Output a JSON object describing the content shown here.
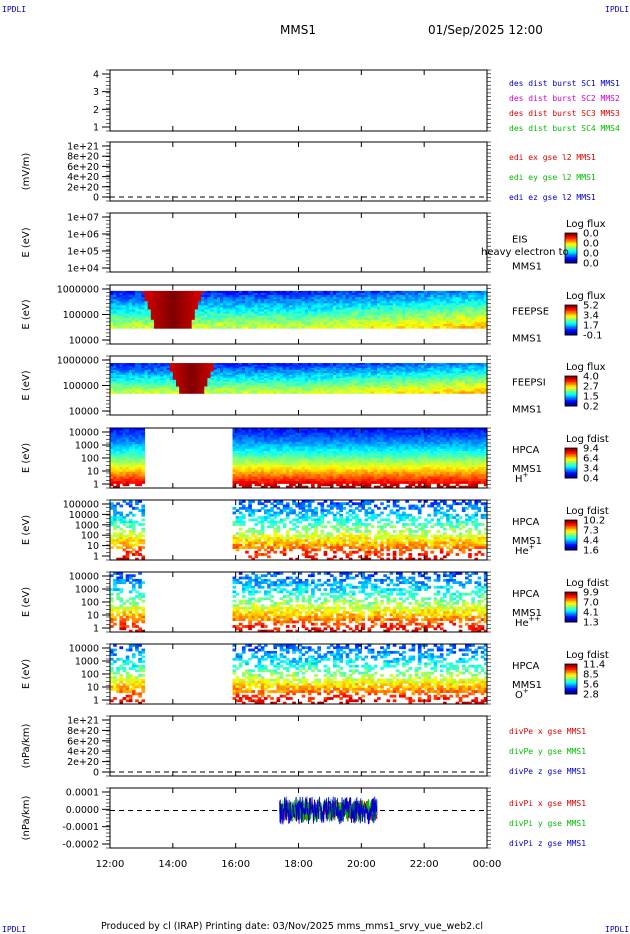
{
  "corner_label": "IPDLI",
  "header": {
    "mission": "MMS1",
    "datetime": "01/Sep/2025 12:00"
  },
  "footer": "Produced by cl (IRAP)   Printing date: 03/Nov/2025   mms_mms1_srvy_vue_web2.cl",
  "colors": {
    "c_blue": "#0000cc",
    "c_magenta": "#cc00cc",
    "c_red": "#dd0000",
    "c_green": "#00bb00",
    "axis": "#000000"
  },
  "chart_data": {
    "type": "heatmap",
    "time_axis": {
      "range_hours": [
        12,
        24
      ],
      "ticks": [
        12,
        14,
        16,
        18,
        20,
        22,
        24
      ],
      "tick_labels": [
        "12:00",
        "14:00",
        "16:00",
        "18:00",
        "20:00",
        "22:00",
        "00:00"
      ]
    },
    "panels": [
      {
        "id": "burst",
        "kind": "line",
        "ylabel": "",
        "yticks": [
          "4",
          "3",
          "2",
          "1"
        ],
        "legend": [
          {
            "text": "des dist burst SC1 MMS1",
            "color": "c_blue"
          },
          {
            "text": "des dist burst SC2 MMS2",
            "color": "c_magenta"
          },
          {
            "text": "des dist burst SC3 MMS3",
            "color": "c_red"
          },
          {
            "text": "des dist burst SC4 MMS4",
            "color": "c_green"
          }
        ]
      },
      {
        "id": "edi",
        "kind": "line",
        "ylabel": "(mV/m)",
        "yticks": [
          "1e+21",
          "8e+20",
          "6e+20",
          "4e+20",
          "2e+20",
          "0"
        ],
        "dashed_zero": true,
        "legend": [
          {
            "text": "edi ex gse l2 MMS1",
            "color": "c_red"
          },
          {
            "text": "edi ey gse l2 MMS1",
            "color": "c_green"
          },
          {
            "text": "edi ez gse l2 MMS1",
            "color": "c_blue"
          }
        ]
      },
      {
        "id": "eis",
        "kind": "spec",
        "ylabel": "E (eV)",
        "yticks": [
          "1e+07",
          "1e+06",
          "1e+05",
          "1e+04"
        ],
        "instrument": [
          "EIS",
          "MMS1"
        ],
        "overlay_text": "heavy electron to",
        "colorbar": {
          "title": "Log flux",
          "ticks": [
            "0.0",
            "0.0",
            "0.0",
            "0.0"
          ]
        }
      },
      {
        "id": "feepse",
        "kind": "spec",
        "ylabel": "E (eV)",
        "yticks": [
          "1000000",
          "100000",
          "10000"
        ],
        "instrument": [
          "FEEPSE",
          "MMS1"
        ],
        "colorbar": {
          "title": "Log flux",
          "ticks": [
            "5.2",
            "3.4",
            "1.7",
            "-0.1"
          ]
        }
      },
      {
        "id": "feepsi",
        "kind": "spec",
        "ylabel": "E (eV)",
        "yticks": [
          "1000000",
          "100000",
          "10000"
        ],
        "instrument": [
          "FEEPSI",
          "MMS1"
        ],
        "colorbar": {
          "title": "Log flux",
          "ticks": [
            "4.0",
            "2.7",
            "1.5",
            "0.2"
          ]
        }
      },
      {
        "id": "hpca_h",
        "kind": "spec",
        "ylabel": "E (eV)",
        "yticks": [
          "10000",
          "1000",
          "100",
          "10",
          "1"
        ],
        "instrument": [
          "HPCA",
          "MMS1"
        ],
        "species": {
          "base": "H",
          "sup": "+"
        },
        "colorbar": {
          "title": "Log fdist",
          "ticks": [
            "9.4",
            "6.4",
            "3.4",
            "0.4"
          ]
        }
      },
      {
        "id": "hpca_he",
        "kind": "spec",
        "ylabel": "E (eV)",
        "yticks": [
          "100000",
          "10000",
          "1000",
          "100",
          "10",
          "1"
        ],
        "instrument": [
          "HPCA",
          "MMS1"
        ],
        "species": {
          "base": "He",
          "sup": "+"
        },
        "colorbar": {
          "title": "Log fdist",
          "ticks": [
            "10.2",
            "7.3",
            "4.4",
            "1.6"
          ]
        }
      },
      {
        "id": "hpca_hepp",
        "kind": "spec",
        "ylabel": "E (eV)",
        "yticks": [
          "10000",
          "1000",
          "100",
          "10",
          "1"
        ],
        "instrument": [
          "HPCA",
          "MMS1"
        ],
        "species": {
          "base": "He",
          "sup": "++"
        },
        "colorbar": {
          "title": "Log fdist",
          "ticks": [
            "9.9",
            "7.0",
            "4.1",
            "1.3"
          ]
        }
      },
      {
        "id": "hpca_o",
        "kind": "spec",
        "ylabel": "E (eV)",
        "yticks": [
          "10000",
          "1000",
          "100",
          "10",
          "1"
        ],
        "instrument": [
          "HPCA",
          "MMS1"
        ],
        "species": {
          "base": "O",
          "sup": "+"
        },
        "colorbar": {
          "title": "Log fdist",
          "ticks": [
            "11.4",
            "8.5",
            "5.6",
            "2.8"
          ]
        }
      },
      {
        "id": "divpe",
        "kind": "line",
        "ylabel": "(nPa/km)",
        "yticks": [
          "1e+21",
          "8e+20",
          "6e+20",
          "4e+20",
          "2e+20",
          "0"
        ],
        "dashed_zero": true,
        "legend": [
          {
            "text": "divPe x gse MMS1",
            "color": "c_red"
          },
          {
            "text": "divPe y gse MMS1",
            "color": "c_green"
          },
          {
            "text": "divPe z gse MMS1",
            "color": "c_blue"
          }
        ]
      },
      {
        "id": "divpi",
        "kind": "line",
        "ylabel": "(nPa/km)",
        "yticks": [
          "0.0001",
          "0.0000",
          "-0.0001",
          "-0.0002"
        ],
        "dashed_zero": true,
        "yrange": [
          -0.0002,
          0.00012
        ],
        "data_span_hours": [
          17.4,
          20.5
        ],
        "legend": [
          {
            "text": "divPi x gse MMS1",
            "color": "c_red"
          },
          {
            "text": "divPi y gse MMS1",
            "color": "c_green"
          },
          {
            "text": "divPi z gse MMS1",
            "color": "c_blue"
          }
        ]
      }
    ]
  }
}
